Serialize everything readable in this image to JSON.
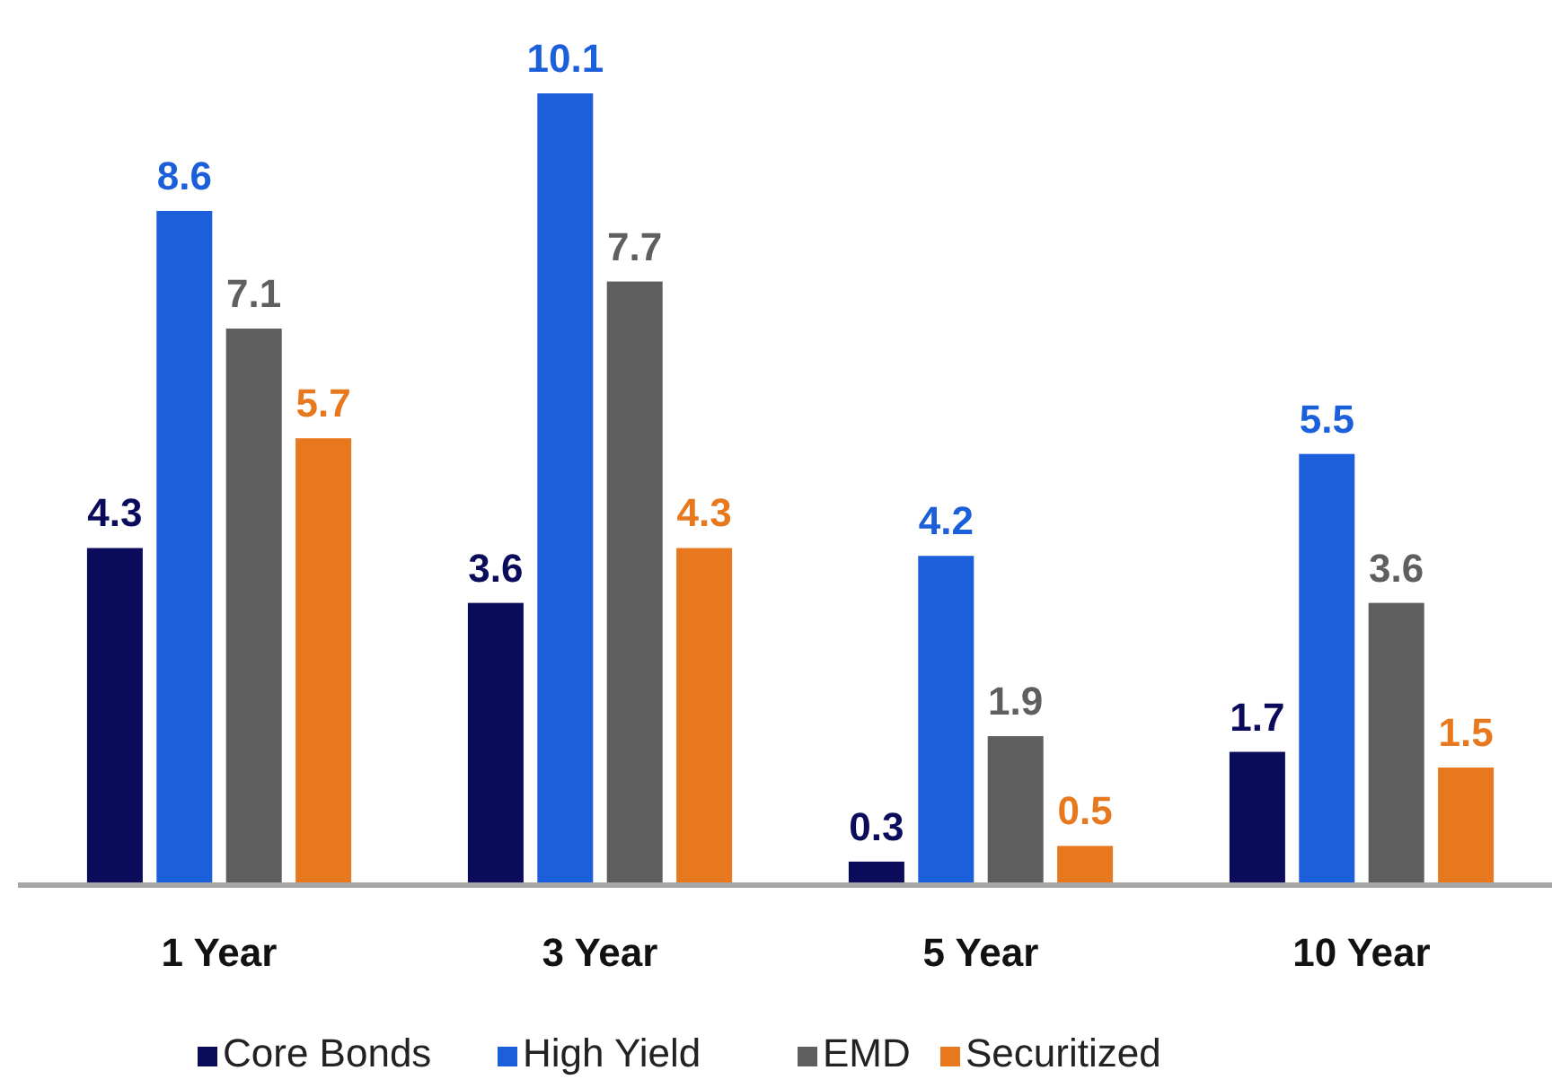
{
  "chart_data": {
    "type": "bar",
    "categories": [
      "1 Year",
      "3 Year",
      "5 Year",
      "10 Year"
    ],
    "series": [
      {
        "name": "Core Bonds",
        "color": "#0b0b5c",
        "values": [
          4.3,
          3.6,
          0.3,
          1.7
        ]
      },
      {
        "name": "High Yield",
        "color": "#1b5fdb",
        "values": [
          8.6,
          10.1,
          4.2,
          5.5
        ]
      },
      {
        "name": "EMD",
        "color": "#5f5f5f",
        "values": [
          7.1,
          7.7,
          1.9,
          3.6
        ]
      },
      {
        "name": "Securitized",
        "color": "#e8781e",
        "values": [
          5.7,
          4.3,
          0.5,
          1.5
        ]
      }
    ],
    "data_labels": true,
    "legend": "bottom",
    "grid": false
  }
}
